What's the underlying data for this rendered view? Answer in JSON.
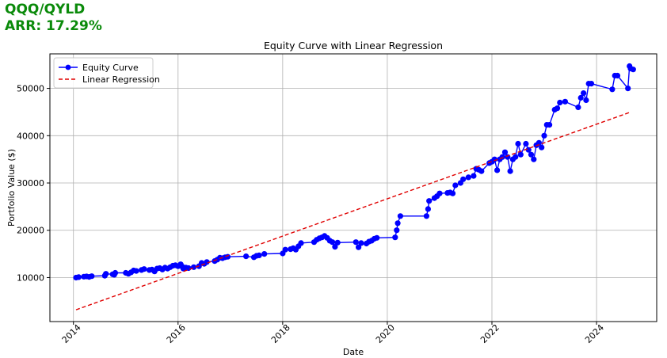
{
  "header": {
    "ticker": "QQQ/QYLD",
    "arr": "ARR: 17.29%"
  },
  "chart_data": {
    "type": "line",
    "title": "Equity Curve with Linear Regression",
    "xlabel": "Date",
    "ylabel": "Portfolio Value ($)",
    "xlim": [
      2013.55,
      2025.15
    ],
    "ylim": [
      700,
      57300
    ],
    "xticks": [
      2014,
      2016,
      2018,
      2020,
      2022,
      2024
    ],
    "yticks": [
      10000,
      20000,
      30000,
      40000,
      50000
    ],
    "grid": true,
    "legend_position": "top-left",
    "series": [
      {
        "name": "Equity Curve",
        "color": "#0000ff",
        "marker": "circle",
        "x": [
          2014.05,
          2014.1,
          2014.2,
          2014.25,
          2014.3,
          2014.35,
          2014.6,
          2014.62,
          2014.75,
          2014.78,
          2014.8,
          2015.0,
          2015.05,
          2015.1,
          2015.15,
          2015.2,
          2015.3,
          2015.35,
          2015.45,
          2015.5,
          2015.55,
          2015.6,
          2015.65,
          2015.7,
          2015.75,
          2015.8,
          2015.85,
          2015.9,
          2015.95,
          2016.0,
          2016.05,
          2016.08,
          2016.1,
          2016.15,
          2016.2,
          2016.3,
          2016.4,
          2016.45,
          2016.5,
          2016.55,
          2016.7,
          2016.75,
          2016.8,
          2016.85,
          2016.9,
          2016.95,
          2017.3,
          2017.45,
          2017.5,
          2017.55,
          2017.65,
          2018.0,
          2018.05,
          2018.15,
          2018.2,
          2018.25,
          2018.3,
          2018.35,
          2018.6,
          2018.65,
          2018.7,
          2018.75,
          2018.8,
          2018.85,
          2018.9,
          2018.95,
          2019.0,
          2019.05,
          2019.4,
          2019.45,
          2019.5,
          2019.6,
          2019.65,
          2019.7,
          2019.75,
          2019.8,
          2020.15,
          2020.18,
          2020.2,
          2020.25,
          2020.75,
          2020.78,
          2020.8,
          2020.9,
          2020.95,
          2021.0,
          2021.15,
          2021.2,
          2021.25,
          2021.3,
          2021.4,
          2021.45,
          2021.55,
          2021.65,
          2021.7,
          2021.75,
          2021.8,
          2021.95,
          2022.0,
          2022.05,
          2022.1,
          2022.15,
          2022.2,
          2022.25,
          2022.3,
          2022.35,
          2022.4,
          2022.45,
          2022.5,
          2022.55,
          2022.65,
          2022.7,
          2022.75,
          2022.8,
          2022.85,
          2022.9,
          2022.95,
          2023.0,
          2023.05,
          2023.1,
          2023.2,
          2023.25,
          2023.3,
          2023.4,
          2023.65,
          2023.7,
          2023.75,
          2023.8,
          2023.85,
          2023.9,
          2024.3,
          2024.35,
          2024.4,
          2024.6,
          2024.63,
          2024.65,
          2024.7
        ],
        "y": [
          10000,
          10100,
          10200,
          10250,
          10150,
          10300,
          10400,
          10800,
          10700,
          10600,
          11000,
          11000,
          10800,
          11100,
          11500,
          11400,
          11600,
          11800,
          11600,
          11700,
          11300,
          11900,
          12000,
          11700,
          12100,
          11900,
          12200,
          12500,
          12600,
          12400,
          12800,
          12300,
          11900,
          12100,
          12000,
          12200,
          12400,
          13100,
          12900,
          13300,
          13500,
          13800,
          14200,
          14100,
          14300,
          14400,
          14500,
          14300,
          14600,
          14700,
          15000,
          15100,
          15900,
          16000,
          16200,
          15900,
          16600,
          17300,
          17500,
          18000,
          18300,
          18500,
          18800,
          18400,
          17800,
          17500,
          16500,
          17400,
          17500,
          16400,
          17300,
          17200,
          17600,
          17800,
          18200,
          18400,
          18500,
          20000,
          21500,
          23000,
          23000,
          24500,
          26200,
          26800,
          27200,
          27800,
          27900,
          28000,
          27800,
          29500,
          30000,
          30800,
          31200,
          31500,
          33000,
          32800,
          32500,
          34200,
          34500,
          35000,
          32700,
          35000,
          35500,
          36500,
          35500,
          32500,
          35000,
          35500,
          38300,
          36000,
          38300,
          37000,
          36000,
          35000,
          38000,
          38500,
          37500,
          40000,
          42300,
          42300,
          45500,
          45800,
          47000,
          47200,
          46000,
          48000,
          49000,
          47500,
          51000,
          51000,
          49800,
          52700,
          52700,
          50000,
          54700,
          54200,
          54000
        ]
      },
      {
        "name": "Linear Regression",
        "color": "#e00000",
        "style": "dashed",
        "x": [
          2014.05,
          2024.65
        ],
        "y": [
          3200,
          45000
        ]
      }
    ]
  }
}
